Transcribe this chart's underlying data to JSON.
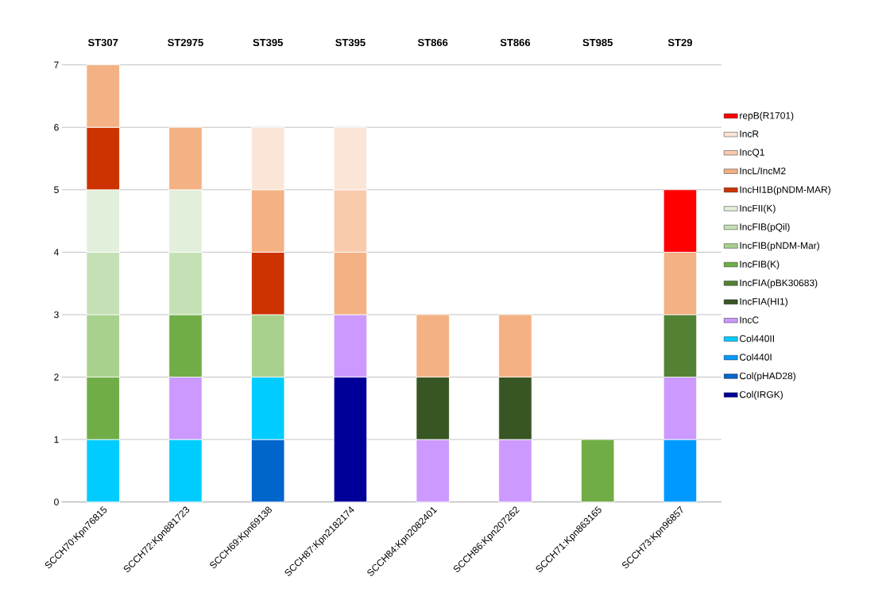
{
  "chart_data": {
    "type": "bar",
    "stacked": true,
    "categories": [
      "SCCH70:Kpn76815",
      "SCCH72:Kpn881723",
      "SCCH69:Kpn69138",
      "SCCH87:Kpn2182174",
      "SCCH84:Kpn2082401",
      "SCCH86:Kpn207262",
      "SCCH71:Kpn863165",
      "SCCH73:Kpn96857"
    ],
    "series": [
      {
        "name": "Col(IRGK)",
        "color": "#000099",
        "values": [
          null,
          null,
          null,
          2,
          null,
          null,
          null,
          null
        ]
      },
      {
        "name": "Col(pHAD28)",
        "color": "#0066cc",
        "values": [
          null,
          null,
          1,
          null,
          null,
          null,
          null,
          null
        ]
      },
      {
        "name": "Col440I",
        "color": "#0099ff",
        "values": [
          null,
          null,
          null,
          null,
          null,
          null,
          null,
          1
        ]
      },
      {
        "name": "Col440II",
        "color": "#00ccff",
        "values": [
          1,
          1,
          1,
          null,
          null,
          null,
          null,
          null
        ]
      },
      {
        "name": "IncC",
        "color": "#cc99ff",
        "values": [
          null,
          1,
          null,
          1,
          1,
          1,
          null,
          1
        ]
      },
      {
        "name": "IncFIA(HI1)",
        "color": "#375623",
        "values": [
          null,
          null,
          null,
          null,
          1,
          1,
          null,
          null
        ]
      },
      {
        "name": "IncFIA(pBK30683)",
        "color": "#548235",
        "values": [
          null,
          null,
          null,
          null,
          null,
          null,
          null,
          1
        ]
      },
      {
        "name": "IncFIB(K)",
        "color": "#70ad47",
        "values": [
          1,
          1,
          null,
          null,
          null,
          null,
          1,
          null
        ]
      },
      {
        "name": "IncFIB(pNDM-Mar)",
        "color": "#a9d18e",
        "values": [
          1,
          null,
          1,
          null,
          null,
          null,
          null,
          null
        ]
      },
      {
        "name": "IncFIB(pQil)",
        "color": "#c5e0b4",
        "values": [
          1,
          1,
          null,
          null,
          null,
          null,
          null,
          null
        ]
      },
      {
        "name": "IncFII(K)",
        "color": "#e2efda",
        "values": [
          1,
          1,
          null,
          null,
          null,
          null,
          null,
          null
        ]
      },
      {
        "name": "IncHI1B(pNDM-MAR)",
        "color": "#cc3300",
        "values": [
          1,
          null,
          1,
          null,
          null,
          null,
          null,
          null
        ]
      },
      {
        "name": "IncL/IncM2",
        "color": "#f4b183",
        "values": [
          1,
          1,
          1,
          1,
          1,
          1,
          null,
          1
        ]
      },
      {
        "name": "IncQ1",
        "color": "#f8cbad",
        "values": [
          null,
          null,
          null,
          1,
          null,
          null,
          null,
          null
        ]
      },
      {
        "name": "IncR",
        "color": "#fbe5d6",
        "values": [
          null,
          null,
          1,
          1,
          null,
          null,
          null,
          null
        ]
      },
      {
        "name": "repB(R1701)",
        "color": "#ff0000",
        "values": [
          null,
          null,
          null,
          null,
          null,
          null,
          null,
          1
        ]
      }
    ],
    "ylim": [
      0,
      7
    ],
    "yticks": [
      0,
      1,
      2,
      3,
      4,
      5,
      6,
      7
    ],
    "grid": "y",
    "legend": "right",
    "annotations": [
      "ST307",
      "ST2975",
      "ST395",
      "ST395",
      "ST866",
      "ST866",
      "ST985",
      "ST29"
    ]
  }
}
